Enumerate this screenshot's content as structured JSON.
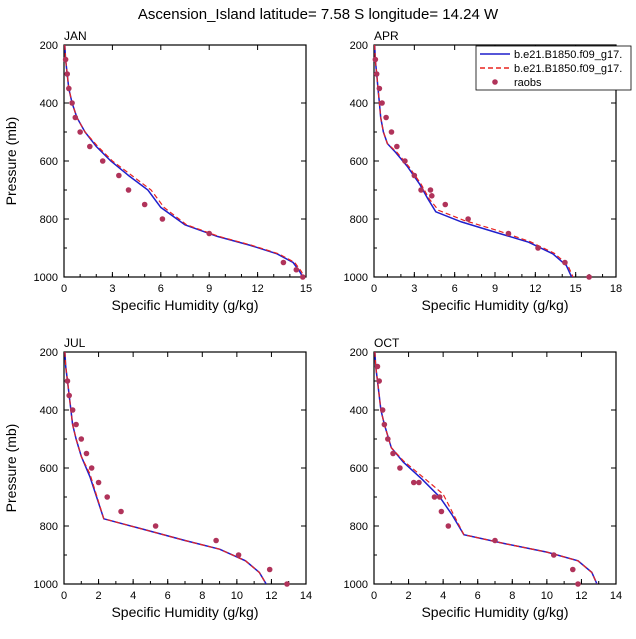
{
  "figure": {
    "title": "Ascension_Island  latitude= 7.58 S longitude= 14.24 W"
  },
  "legend": {
    "entries": [
      {
        "label": "b.e21.B1850.f09_g17.",
        "style": "solid",
        "color": "#1f1fcc"
      },
      {
        "label": "b.e21.B1850.f09_g17.",
        "style": "dashed",
        "color": "#e8231f"
      },
      {
        "label": "raobs",
        "style": "marker",
        "color": "#b0335a"
      }
    ]
  },
  "chart_data": [
    {
      "type": "line",
      "panel": "JAN",
      "xlabel": "Specific Humidity (g/kg)",
      "ylabel": "Pressure (mb)",
      "xlim": [
        0,
        15
      ],
      "ylim": [
        1000,
        200
      ],
      "y_reversed": true,
      "xticks": [
        0,
        3,
        6,
        9,
        12,
        15
      ],
      "yticks": [
        200,
        400,
        600,
        800,
        1000
      ],
      "series": [
        {
          "name": "b.e21.B1850.f09_g17.",
          "style": "solid",
          "color": "#1f1fcc",
          "x": [
            0.05,
            0.1,
            0.2,
            0.3,
            0.5,
            0.8,
            1.3,
            2.0,
            2.9,
            4.0,
            5.2,
            6.0,
            7.5,
            9.5,
            11.5,
            13.2,
            14.2,
            14.6,
            14.8
          ],
          "y": [
            200,
            250,
            300,
            350,
            400,
            450,
            500,
            550,
            600,
            650,
            700,
            760,
            820,
            860,
            890,
            920,
            950,
            980,
            1000
          ]
        },
        {
          "name": "b.e21.B1850.f09_g17.",
          "style": "dashed",
          "color": "#e8231f",
          "x": [
            0.05,
            0.1,
            0.2,
            0.3,
            0.5,
            0.8,
            1.3,
            2.1,
            3.0,
            4.2,
            5.4,
            6.2,
            7.6,
            9.6,
            11.6,
            13.3,
            14.3,
            14.7,
            14.9
          ],
          "y": [
            200,
            250,
            300,
            350,
            400,
            450,
            500,
            550,
            600,
            650,
            700,
            760,
            820,
            860,
            890,
            920,
            950,
            980,
            1000
          ]
        },
        {
          "name": "raobs",
          "style": "marker",
          "color": "#b0335a",
          "x": [
            0.1,
            0.2,
            0.3,
            0.5,
            0.7,
            1.0,
            1.6,
            2.4,
            3.4,
            4.0,
            5.0,
            6.1,
            9.0,
            13.6,
            14.4,
            14.8
          ],
          "y": [
            250,
            300,
            350,
            400,
            450,
            500,
            550,
            600,
            650,
            700,
            750,
            800,
            850,
            950,
            975,
            1000
          ]
        }
      ]
    },
    {
      "type": "line",
      "panel": "APR",
      "xlabel": "Specific Humidity (g/kg)",
      "ylabel": "",
      "xlim": [
        0,
        18
      ],
      "ylim": [
        1000,
        200
      ],
      "y_reversed": true,
      "xticks": [
        0,
        3,
        6,
        9,
        12,
        15,
        18
      ],
      "yticks": [
        200,
        400,
        600,
        800,
        1000
      ],
      "series": [
        {
          "name": "b.e21.B1850.f09_g17.",
          "style": "solid",
          "color": "#1f1fcc",
          "x": [
            0.05,
            0.1,
            0.2,
            0.3,
            0.4,
            0.5,
            0.7,
            1.0,
            1.6,
            2.5,
            3.4,
            4.0,
            4.6,
            6.5,
            9.0,
            11.5,
            13.3,
            14.3,
            14.7
          ],
          "y": [
            200,
            250,
            300,
            350,
            400,
            450,
            500,
            540,
            570,
            620,
            680,
            730,
            775,
            810,
            845,
            880,
            920,
            960,
            1000
          ]
        },
        {
          "name": "b.e21.B1850.f09_g17.",
          "style": "dashed",
          "color": "#e8231f",
          "x": [
            0.05,
            0.1,
            0.2,
            0.3,
            0.4,
            0.5,
            0.7,
            1.0,
            1.7,
            2.6,
            3.5,
            4.1,
            4.8,
            6.7,
            9.2,
            11.6,
            13.4,
            14.4,
            14.8
          ],
          "y": [
            200,
            250,
            300,
            350,
            400,
            450,
            500,
            540,
            570,
            620,
            680,
            730,
            770,
            805,
            840,
            878,
            918,
            958,
            1000
          ]
        },
        {
          "name": "raobs",
          "style": "marker",
          "color": "#b0335a",
          "x": [
            0.1,
            0.2,
            0.4,
            0.6,
            0.9,
            1.3,
            1.7,
            2.3,
            3.0,
            3.5,
            4.2,
            4.3,
            5.3,
            7.0,
            10.0,
            12.2,
            14.2,
            16.0
          ],
          "y": [
            250,
            300,
            350,
            400,
            450,
            500,
            550,
            600,
            650,
            700,
            700,
            720,
            750,
            800,
            850,
            900,
            950,
            1000
          ]
        }
      ]
    },
    {
      "type": "line",
      "panel": "JUL",
      "xlabel": "Specific Humidity (g/kg)",
      "ylabel": "Pressure (mb)",
      "xlim": [
        0,
        14
      ],
      "ylim": [
        1000,
        200
      ],
      "y_reversed": true,
      "xticks": [
        0,
        2,
        4,
        6,
        8,
        10,
        12,
        14
      ],
      "yticks": [
        200,
        400,
        600,
        800,
        1000
      ],
      "series": [
        {
          "name": "b.e21.B1850.f09_g17.",
          "style": "solid",
          "color": "#1f1fcc",
          "x": [
            0.05,
            0.1,
            0.2,
            0.3,
            0.4,
            0.5,
            0.7,
            1.0,
            1.5,
            2.3,
            4.5,
            7.0,
            9.0,
            10.5,
            11.3,
            11.7
          ],
          "y": [
            200,
            250,
            300,
            350,
            400,
            450,
            500,
            560,
            630,
            775,
            810,
            850,
            880,
            920,
            960,
            1000
          ]
        },
        {
          "name": "b.e21.B1850.f09_g17.",
          "style": "dashed",
          "color": "#e8231f",
          "x": [
            0.05,
            0.1,
            0.2,
            0.3,
            0.4,
            0.5,
            0.7,
            1.0,
            1.5,
            2.3,
            4.5,
            7.0,
            9.0,
            10.5,
            11.3,
            11.7
          ],
          "y": [
            200,
            250,
            300,
            350,
            400,
            450,
            500,
            560,
            620,
            775,
            810,
            850,
            880,
            920,
            960,
            1000
          ]
        },
        {
          "name": "raobs",
          "style": "marker",
          "color": "#b0335a",
          "x": [
            0.2,
            0.3,
            0.5,
            0.7,
            1.0,
            1.3,
            1.6,
            2.0,
            2.5,
            3.3,
            5.3,
            8.8,
            10.1,
            11.9,
            12.9
          ],
          "y": [
            300,
            350,
            400,
            450,
            500,
            550,
            600,
            650,
            700,
            750,
            800,
            850,
            900,
            950,
            1000
          ]
        }
      ]
    },
    {
      "type": "line",
      "panel": "OCT",
      "xlabel": "Specific Humidity (g/kg)",
      "ylabel": "",
      "xlim": [
        0,
        14
      ],
      "ylim": [
        1000,
        200
      ],
      "y_reversed": true,
      "xticks": [
        0,
        2,
        4,
        6,
        8,
        10,
        12,
        14
      ],
      "yticks": [
        200,
        400,
        600,
        800,
        1000
      ],
      "series": [
        {
          "name": "b.e21.B1850.f09_g17.",
          "style": "solid",
          "color": "#1f1fcc",
          "x": [
            0.05,
            0.1,
            0.2,
            0.3,
            0.4,
            0.6,
            1.0,
            1.7,
            2.8,
            3.8,
            4.5,
            5.2,
            7.5,
            10.0,
            11.8,
            12.6,
            12.9
          ],
          "y": [
            200,
            250,
            300,
            350,
            400,
            450,
            530,
            580,
            640,
            700,
            760,
            830,
            860,
            890,
            920,
            960,
            1000
          ]
        },
        {
          "name": "b.e21.B1850.f09_g17.",
          "style": "dashed",
          "color": "#e8231f",
          "x": [
            0.05,
            0.1,
            0.2,
            0.3,
            0.4,
            0.6,
            1.0,
            1.7,
            2.9,
            4.0,
            4.6,
            5.2,
            7.5,
            10.0,
            11.8,
            12.6,
            12.9
          ],
          "y": [
            200,
            250,
            300,
            350,
            400,
            450,
            530,
            575,
            635,
            690,
            760,
            830,
            860,
            890,
            920,
            960,
            1000
          ]
        },
        {
          "name": "raobs",
          "style": "marker",
          "color": "#b0335a",
          "x": [
            0.2,
            0.3,
            0.5,
            0.6,
            0.8,
            1.1,
            1.5,
            2.3,
            2.6,
            3.5,
            3.8,
            3.9,
            4.3,
            7.0,
            10.4,
            11.5,
            11.8
          ],
          "y": [
            250,
            300,
            400,
            450,
            500,
            550,
            600,
            650,
            650,
            700,
            700,
            750,
            800,
            850,
            900,
            950,
            1000
          ]
        }
      ]
    }
  ]
}
